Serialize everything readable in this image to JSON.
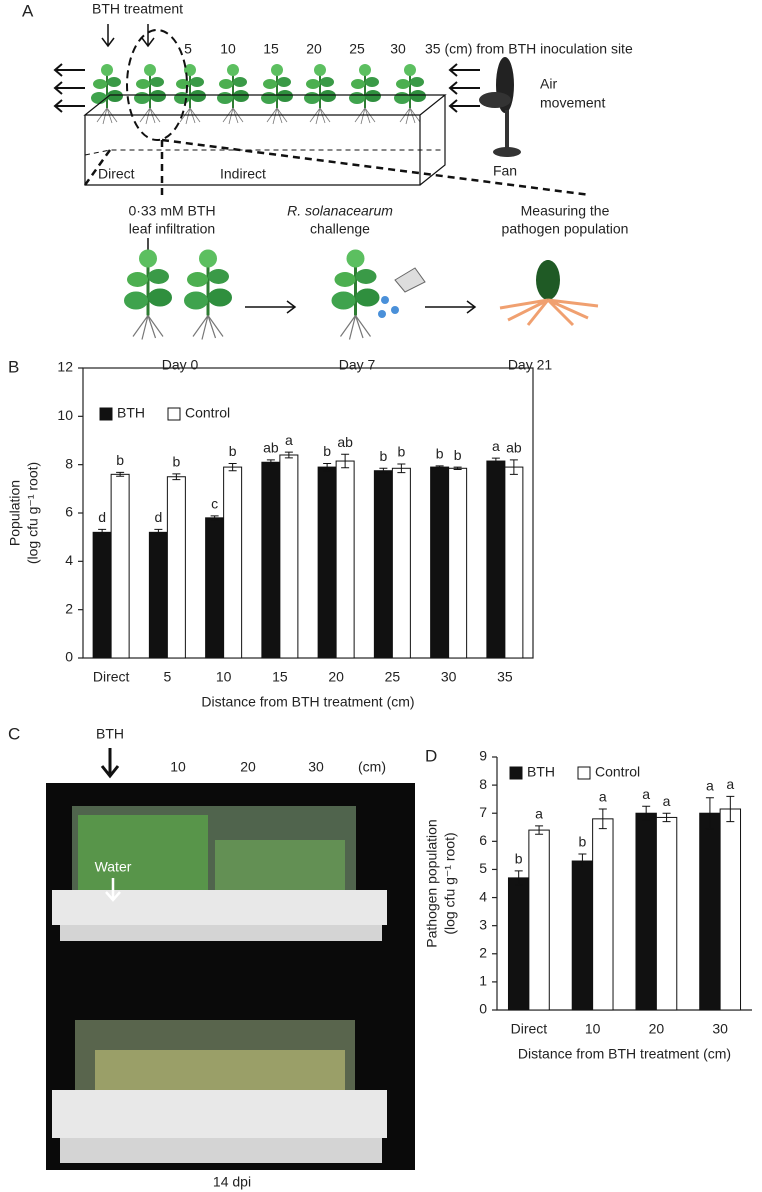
{
  "panel_a": {
    "panel": "A",
    "bth_treatment": "BTH treatment",
    "distances": [
      "5",
      "10",
      "15",
      "20",
      "25"
    ],
    "distance_last": "30",
    "distance_note": "35 (cm) from BTH inoculation site",
    "air": [
      "Air",
      "movement"
    ],
    "fan": "Fan",
    "direct": "Direct",
    "indirect": "Indirect",
    "step1": [
      "0·33 mM BTH",
      "leaf infiltration"
    ],
    "step2": [
      "R. solanacearum",
      "challenge"
    ],
    "step3": [
      "Measuring the",
      "pathogen population"
    ],
    "days": [
      "Day 0",
      "Day 7",
      "Day 21"
    ]
  },
  "panel_c": {
    "panel": "C",
    "bth": "BTH",
    "distances": [
      "10",
      "20",
      "30",
      "(cm)"
    ],
    "water": "Water",
    "caption": "14 dpi"
  },
  "chart_data": [
    {
      "type": "bar",
      "panel": "B",
      "x_label": "Distance from BTH treatment (cm)",
      "y_label": [
        "Population",
        "(log cfu g⁻¹ root)"
      ],
      "categories": [
        "Direct",
        "5",
        "10",
        "15",
        "20",
        "25",
        "30",
        "35"
      ],
      "series": [
        {
          "name": "BTH",
          "color": "#111111",
          "values": [
            5.2,
            5.2,
            5.8,
            8.1,
            7.9,
            7.75,
            7.9,
            8.15
          ],
          "errors": [
            0.12,
            0.12,
            0.08,
            0.1,
            0.15,
            0.1,
            0.05,
            0.12
          ],
          "labels": [
            "d",
            "d",
            "c",
            "ab",
            "b",
            "b",
            "b",
            "a"
          ]
        },
        {
          "name": "Control",
          "color": "#ffffff",
          "values": [
            7.6,
            7.5,
            7.9,
            8.4,
            8.15,
            7.85,
            7.85,
            7.9
          ],
          "errors": [
            0.08,
            0.12,
            0.15,
            0.12,
            0.28,
            0.18,
            0.05,
            0.3
          ],
          "labels": [
            "b",
            "b",
            "b",
            "a",
            "ab",
            "b",
            "b",
            "ab"
          ]
        }
      ],
      "ylim": [
        0,
        12
      ],
      "yticks": [
        0,
        2,
        4,
        6,
        8,
        10,
        12
      ],
      "legend": "upper left",
      "frame": true,
      "grid": false
    },
    {
      "type": "bar",
      "panel": "D",
      "x_label": "Distance from BTH treatment (cm)",
      "y_label": [
        "Pathogen population",
        "(log cfu g⁻¹ root)"
      ],
      "categories": [
        "Direct",
        "10",
        "20",
        "30"
      ],
      "series": [
        {
          "name": "BTH",
          "color": "#111111",
          "values": [
            4.7,
            5.3,
            7.0,
            7.0
          ],
          "errors": [
            0.25,
            0.25,
            0.25,
            0.55
          ],
          "labels": [
            "b",
            "b",
            "a",
            "a"
          ]
        },
        {
          "name": "Control",
          "color": "#ffffff",
          "values": [
            6.4,
            6.8,
            6.85,
            7.15
          ],
          "errors": [
            0.15,
            0.35,
            0.15,
            0.45
          ],
          "labels": [
            "a",
            "a",
            "a",
            "a"
          ]
        }
      ],
      "ylim": [
        0,
        9
      ],
      "yticks": [
        0,
        1,
        2,
        3,
        4,
        5,
        6,
        7,
        8,
        9
      ],
      "legend": "upper left",
      "frame": false,
      "grid": false
    }
  ]
}
